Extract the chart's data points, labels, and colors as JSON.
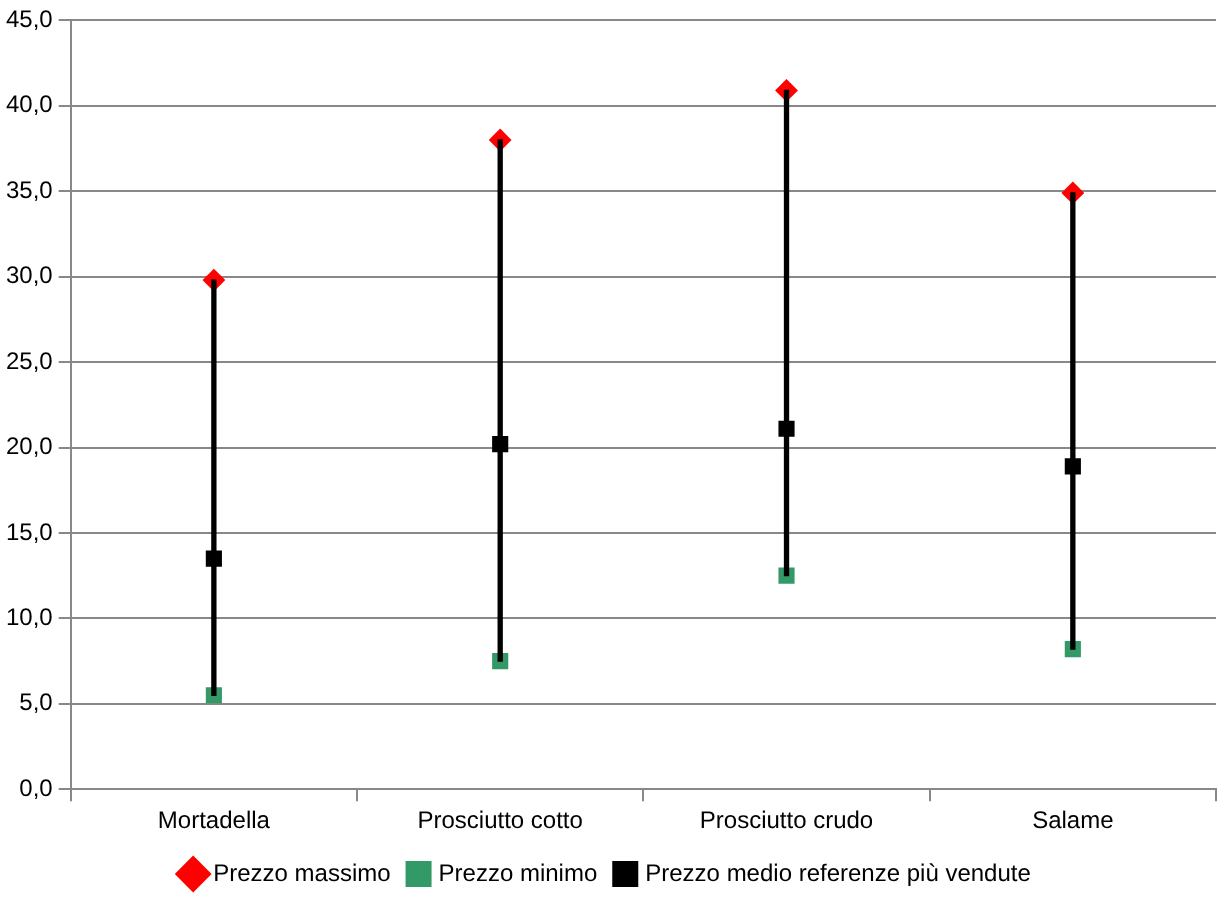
{
  "chart_data": {
    "type": "scatter",
    "categories": [
      "Mortadella",
      "Prosciutto cotto",
      "Prosciutto crudo",
      "Salame"
    ],
    "series": [
      {
        "type": "bar",
        "color": "#000000",
        "base": [
          5.5,
          7.5,
          12.5,
          8.2
        ],
        "values": [
          24.3,
          30.5,
          28.4,
          26.7
        ]
      },
      {
        "name": "Prezzo massimo",
        "color": "#ff0000",
        "marker": "diamond",
        "values": [
          29.8,
          38.0,
          40.9,
          34.9
        ]
      },
      {
        "name": "Prezzo minimo",
        "color": "#339966",
        "marker": "square",
        "values": [
          5.5,
          7.5,
          12.5,
          8.2
        ]
      },
      {
        "name": "Prezzo medio referenze più vendute",
        "color": "#000000",
        "marker": "square",
        "values": [
          13.5,
          20.2,
          21.1,
          18.9
        ]
      }
    ],
    "ylim": [
      0,
      45
    ],
    "yticks": [
      {
        "value": 0,
        "label": "0,0"
      },
      {
        "value": 5,
        "label": "5,0"
      },
      {
        "value": 10,
        "label": "10,0"
      },
      {
        "value": 15,
        "label": "15,0"
      },
      {
        "value": 20,
        "label": "20,0"
      },
      {
        "value": 25,
        "label": "25,0"
      },
      {
        "value": 30,
        "label": "30,0"
      },
      {
        "value": 35,
        "label": "35,0"
      },
      {
        "value": 40,
        "label": "40,0"
      },
      {
        "value": 45,
        "label": "45,0"
      }
    ],
    "grid": "y",
    "legend": "bottom"
  }
}
